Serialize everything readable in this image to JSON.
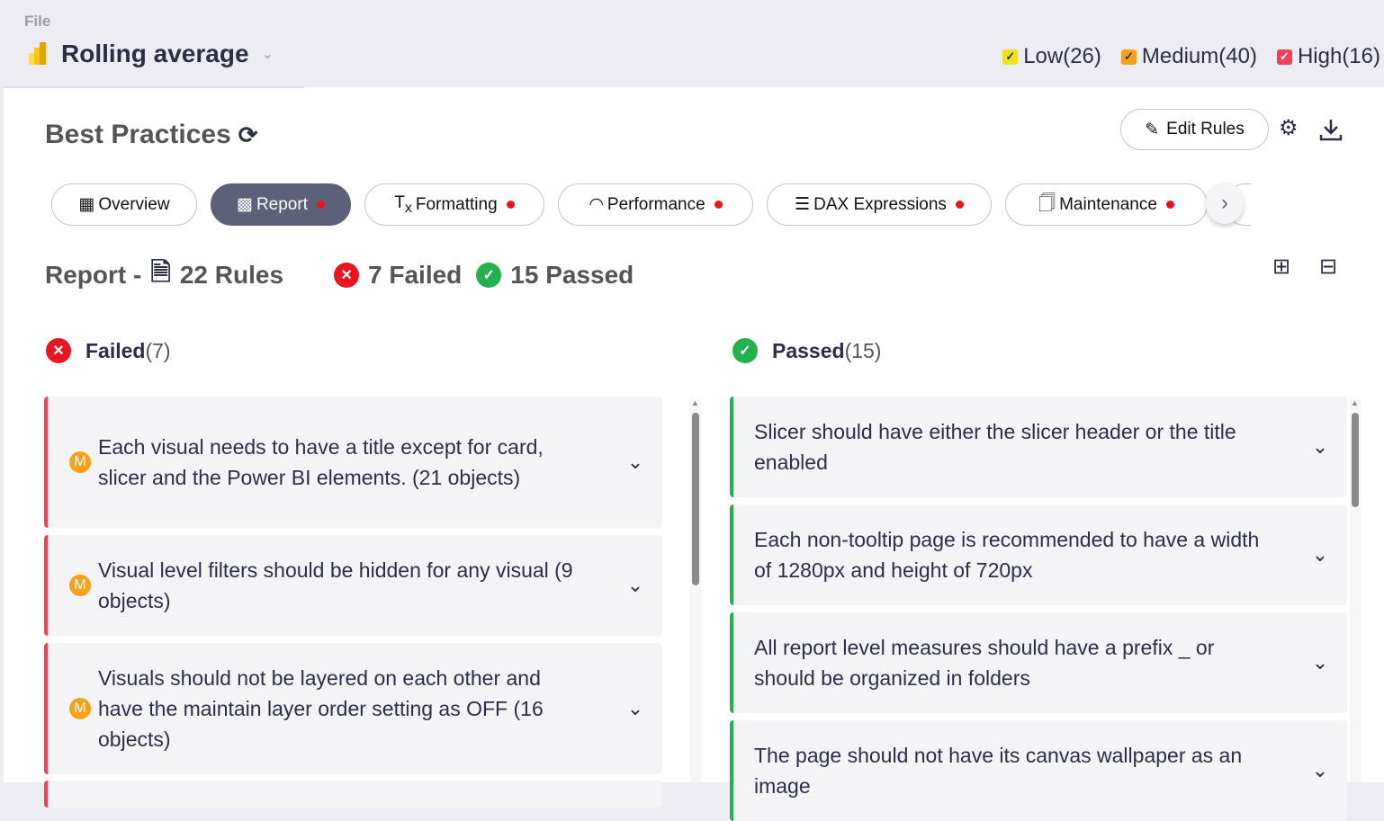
{
  "header": {
    "file_label": "File",
    "report_name": "Rolling average"
  },
  "severity": [
    {
      "label": "Low(26)",
      "color": "#f0e020",
      "check": "#2b2f45"
    },
    {
      "label": "Medium(40)",
      "color": "#f5a21b",
      "check": "#2b2f45"
    },
    {
      "label": "High(16)",
      "color": "#f0405a",
      "check": "#ffffff"
    }
  ],
  "page": {
    "title": "Best Practices",
    "edit_rules": "Edit Rules"
  },
  "tabs": [
    {
      "label": "Overview",
      "icon": "grid-icon",
      "dot": false,
      "active": false
    },
    {
      "label": "Report",
      "icon": "report-icon",
      "dot": true,
      "active": true
    },
    {
      "label": "Formatting",
      "icon": "clear-format-icon",
      "dot": true,
      "active": false
    },
    {
      "label": "Performance",
      "icon": "gauge-icon",
      "dot": true,
      "active": false
    },
    {
      "label": "DAX Expressions",
      "icon": "dax-icon",
      "dot": true,
      "active": false
    },
    {
      "label": "Maintenance",
      "icon": "maintenance-icon",
      "dot": true,
      "active": false
    }
  ],
  "summary": {
    "section": "Report -",
    "rules": "22 Rules",
    "failed": "7 Failed",
    "passed": "15 Passed"
  },
  "failed": {
    "title": "Failed",
    "count": "(7)",
    "items": [
      {
        "badge": "M",
        "text": "Each visual needs to have a title except for card, slicer and the Power BI elements. (21 objects)"
      },
      {
        "badge": "M",
        "text": "Visual level filters should be hidden for any visual (9 objects)"
      },
      {
        "badge": "M",
        "text": "Visuals should not be layered on each other and have the maintain layer order setting as OFF (16 objects)"
      }
    ]
  },
  "passed": {
    "title": "Passed",
    "count": "(15)",
    "items": [
      {
        "text": "Slicer should have either the slicer header or the title enabled"
      },
      {
        "text": "Each non-tooltip page is recommended to have a width of 1280px and height of 720px"
      },
      {
        "text": "All report level measures should have a prefix _ or should be organized in folders"
      },
      {
        "text": "The page should not have its canvas wallpaper as an image"
      }
    ]
  },
  "colors": {
    "accent": "#5c6079",
    "failed": "#e8141f",
    "passed": "#22b14c",
    "medium": "#f5a21b"
  }
}
